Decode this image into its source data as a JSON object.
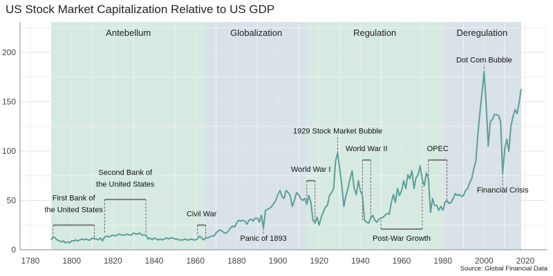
{
  "chart_data": {
    "type": "line",
    "title": "US Stock Market Capitalization Relative to US GDP",
    "source": "Source: Global Financial Data",
    "xlabel": "",
    "ylabel": "",
    "xlim": [
      1775,
      2031
    ],
    "ylim": [
      0,
      229
    ],
    "xticks": [
      1780,
      1800,
      1820,
      1840,
      1860,
      1880,
      1900,
      1920,
      1940,
      1960,
      1980,
      2000,
      2020
    ],
    "yticks": [
      0,
      50,
      100,
      150,
      200
    ],
    "grid": true,
    "line_color": "#5b9e99",
    "regions": [
      {
        "label": "Antebellum",
        "start": 1790,
        "end": 1865,
        "color": "#d3e8e0"
      },
      {
        "label": "Globalization",
        "start": 1865,
        "end": 1914,
        "color": "#d5dfe6"
      },
      {
        "label": "Regulation",
        "start": 1914,
        "end": 1980,
        "color": "#d3e8e0"
      },
      {
        "label": "Deregulation",
        "start": 1980,
        "end": 2018,
        "color": "#d5dfe6"
      }
    ],
    "annotations": [
      {
        "lines": [
          "First Bank of",
          "the United States"
        ],
        "type": "bracket",
        "start": 1791,
        "end": 1811,
        "level": 25,
        "label_level": 38,
        "ends_to": [
          12,
          12
        ]
      },
      {
        "lines": [
          "Second Bank of",
          "the United States"
        ],
        "type": "bracket",
        "start": 1816,
        "end": 1836,
        "level": 51,
        "label_level": 64,
        "ends_to": [
          16,
          16
        ]
      },
      {
        "lines": [
          "Civil War"
        ],
        "type": "bracket",
        "start": 1861,
        "end": 1865,
        "level": 25,
        "label_level": 34,
        "ends_to": [
          14,
          13
        ]
      },
      {
        "lines": [
          "Panic of 1893"
        ],
        "type": "drop",
        "year": 1893,
        "from": 22,
        "label_level": 9
      },
      {
        "lines": [
          "World War I"
        ],
        "type": "bracket",
        "start": 1914,
        "end": 1918,
        "level": 70,
        "label_level": 79,
        "ends_to": [
          50,
          27
        ]
      },
      {
        "lines": [
          "1929 Stock Market Bubble"
        ],
        "type": "drop",
        "year": 1929,
        "from": 98,
        "to_level": 116,
        "label_level": 118
      },
      {
        "lines": [
          "World War II"
        ],
        "type": "bracket",
        "start": 1941,
        "end": 1945,
        "level": 91,
        "label_level": 100,
        "ends_to": [
          30,
          30
        ]
      },
      {
        "lines": [
          "Post-War Growth"
        ],
        "type": "bracket-below",
        "start": 1950,
        "end": 1970,
        "level": 21,
        "label_level": 9,
        "ends_to": [
          33,
          72
        ]
      },
      {
        "lines": [
          "OPEC"
        ],
        "type": "bracket",
        "start": 1973,
        "end": 1982,
        "level": 91,
        "label_level": 100,
        "ends_to": [
          72,
          48
        ]
      },
      {
        "lines": [
          "Dot Com Bubble"
        ],
        "type": "drop",
        "year": 2000,
        "from": 180,
        "to_level": 188,
        "label_level": 190
      },
      {
        "lines": [
          "Financial Crisis"
        ],
        "type": "drop-below",
        "year": 2009,
        "from": 78,
        "to_level": 62,
        "label_level": 58
      }
    ],
    "x": [
      1790,
      1791,
      1792,
      1793,
      1794,
      1795,
      1796,
      1797,
      1798,
      1799,
      1800,
      1801,
      1802,
      1803,
      1804,
      1805,
      1806,
      1807,
      1808,
      1809,
      1810,
      1811,
      1812,
      1813,
      1814,
      1815,
      1816,
      1817,
      1818,
      1819,
      1820,
      1821,
      1822,
      1823,
      1824,
      1825,
      1826,
      1827,
      1828,
      1829,
      1830,
      1831,
      1832,
      1833,
      1834,
      1835,
      1836,
      1837,
      1838,
      1839,
      1840,
      1841,
      1842,
      1843,
      1844,
      1845,
      1846,
      1847,
      1848,
      1849,
      1850,
      1851,
      1852,
      1853,
      1854,
      1855,
      1856,
      1857,
      1858,
      1859,
      1860,
      1861,
      1862,
      1863,
      1864,
      1865,
      1866,
      1867,
      1868,
      1869,
      1870,
      1871,
      1872,
      1873,
      1874,
      1875,
      1876,
      1877,
      1878,
      1879,
      1880,
      1881,
      1882,
      1883,
      1884,
      1885,
      1886,
      1887,
      1888,
      1889,
      1890,
      1891,
      1892,
      1893,
      1894,
      1895,
      1896,
      1897,
      1898,
      1899,
      1900,
      1901,
      1902,
      1903,
      1904,
      1905,
      1906,
      1907,
      1908,
      1909,
      1910,
      1911,
      1912,
      1913,
      1914,
      1915,
      1916,
      1917,
      1918,
      1919,
      1920,
      1921,
      1922,
      1923,
      1924,
      1925,
      1926,
      1927,
      1928,
      1929,
      1930,
      1931,
      1932,
      1933,
      1934,
      1935,
      1936,
      1937,
      1938,
      1939,
      1940,
      1941,
      1942,
      1943,
      1944,
      1945,
      1946,
      1947,
      1948,
      1949,
      1950,
      1951,
      1952,
      1953,
      1954,
      1955,
      1956,
      1957,
      1958,
      1959,
      1960,
      1961,
      1962,
      1963,
      1964,
      1965,
      1966,
      1967,
      1968,
      1969,
      1970,
      1971,
      1972,
      1973,
      1974,
      1975,
      1976,
      1977,
      1978,
      1979,
      1980,
      1981,
      1982,
      1983,
      1984,
      1985,
      1986,
      1987,
      1988,
      1989,
      1990,
      1991,
      1992,
      1993,
      1994,
      1995,
      1996,
      1997,
      1998,
      1999,
      2000,
      2001,
      2002,
      2003,
      2004,
      2005,
      2006,
      2007,
      2008,
      2009,
      2010,
      2011,
      2012,
      2013,
      2014,
      2015,
      2016,
      2017,
      2018
    ],
    "values": [
      10,
      13,
      12,
      10,
      9,
      8,
      9,
      7,
      8,
      7,
      9,
      9,
      10,
      9,
      10,
      11,
      10,
      11,
      10,
      10,
      12,
      11,
      11,
      10,
      12,
      9,
      13,
      14,
      13,
      14,
      15,
      14,
      15,
      16,
      15,
      15,
      15,
      16,
      15,
      15,
      17,
      16,
      16,
      17,
      15,
      15,
      15,
      11,
      12,
      10,
      12,
      11,
      10,
      11,
      10,
      11,
      12,
      11,
      12,
      12,
      11,
      11,
      10,
      10,
      10,
      11,
      10,
      10,
      11,
      10,
      10,
      11,
      14,
      12,
      10,
      12,
      12,
      13,
      14,
      14,
      17,
      19,
      20,
      19,
      17,
      17,
      19,
      22,
      24,
      23,
      27,
      30,
      29,
      30,
      29,
      26,
      30,
      31,
      29,
      32,
      32,
      28,
      35,
      22,
      40,
      41,
      42,
      44,
      47,
      50,
      56,
      60,
      54,
      52,
      60,
      58,
      55,
      44,
      50,
      58,
      56,
      52,
      50,
      52,
      46,
      55,
      48,
      30,
      27,
      33,
      25,
      33,
      38,
      43,
      45,
      55,
      58,
      62,
      90,
      98,
      82,
      65,
      44,
      55,
      62,
      72,
      80,
      62,
      56,
      70,
      60,
      55,
      30,
      28,
      27,
      32,
      35,
      30,
      28,
      31,
      32,
      33,
      35,
      37,
      36,
      48,
      56,
      48,
      62,
      55,
      60,
      70,
      62,
      76,
      72,
      80,
      62,
      73,
      76,
      85,
      72,
      65,
      78,
      72,
      38,
      52,
      45,
      45,
      40,
      44,
      40,
      48,
      50,
      47,
      48,
      52,
      57,
      55,
      56,
      54,
      55,
      60,
      62,
      68,
      72,
      82,
      90,
      118,
      140,
      160,
      180,
      148,
      105,
      130,
      132,
      137,
      137,
      136,
      130,
      78,
      102,
      112,
      100,
      125,
      135,
      142,
      138,
      150,
      163
    ]
  }
}
